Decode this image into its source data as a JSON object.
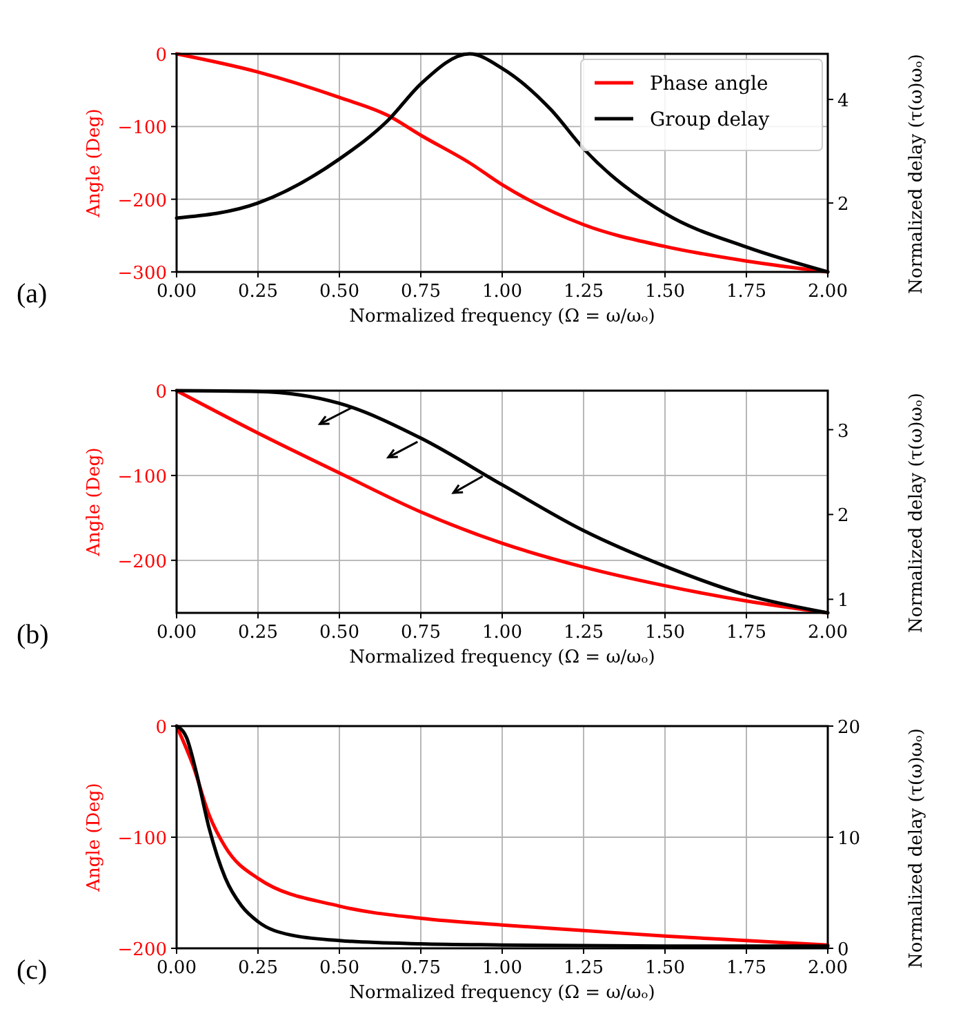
{
  "chart_data": [
    {
      "type": "line",
      "xlabel": "Normalized frequency (Ω = ω/ωₒ)",
      "ylabel": "Angle (Deg)",
      "y2label": "Normalized delay (τ(ω)ωₒ)",
      "annotations": [
        "(a)"
      ],
      "xlim": [
        0,
        2
      ],
      "xticks": [
        {
          "value": 0,
          "label": "0.00"
        },
        {
          "value": 0.25,
          "label": "0.25"
        },
        {
          "value": 0.5,
          "label": "0.50"
        },
        {
          "value": 0.75,
          "label": "0.75"
        },
        {
          "value": 1,
          "label": "1.00"
        },
        {
          "value": 1.25,
          "label": "1.25"
        },
        {
          "value": 1.5,
          "label": "1.50"
        },
        {
          "value": 1.75,
          "label": "1.75"
        },
        {
          "value": 2,
          "label": "2.00"
        }
      ],
      "ylim": [
        -300,
        0
      ],
      "yticks": [
        {
          "value": -300,
          "label": "−300"
        },
        {
          "value": -200,
          "label": "−200"
        },
        {
          "value": -100,
          "label": "−100"
        },
        {
          "value": 0,
          "label": "0"
        }
      ],
      "y2lim": [
        0.67,
        4.88
      ],
      "y2ticks": [
        2,
        4
      ],
      "grid": true,
      "legend": "top right",
      "series": [
        {
          "name": "Phase angle",
          "color": "#ff0000",
          "x": [
            0,
            0.25,
            0.5,
            0.65,
            0.75,
            0.9,
            1,
            1.25,
            1.5,
            1.75,
            2
          ],
          "values": [
            0,
            -25,
            -60,
            -85,
            -112,
            -150,
            -180,
            -235,
            -265,
            -285,
            -300
          ]
        },
        {
          "name": "Group delay",
          "color": "#000000",
          "axis": "y2",
          "x": [
            0,
            0.25,
            0.5,
            0.65,
            0.75,
            0.9,
            1,
            1.15,
            1.25,
            1.5,
            1.75,
            2
          ],
          "values": [
            1.71,
            2.0,
            2.85,
            3.6,
            4.3,
            4.88,
            4.6,
            3.8,
            3.05,
            1.8,
            1.15,
            0.67
          ]
        }
      ]
    },
    {
      "type": "line",
      "xlabel": "Normalized frequency (Ω = ω/ωₒ)",
      "ylabel": "Angle (Deg)",
      "y2label": "Normalized delay (τ(ω)ωₒ)",
      "annotations": [
        "(b)"
      ],
      "xlim": [
        0,
        2
      ],
      "xticks": [
        {
          "value": 0,
          "label": "0.00"
        },
        {
          "value": 0.25,
          "label": "0.25"
        },
        {
          "value": 0.5,
          "label": "0.50"
        },
        {
          "value": 0.75,
          "label": "0.75"
        },
        {
          "value": 1,
          "label": "1.00"
        },
        {
          "value": 1.25,
          "label": "1.25"
        },
        {
          "value": 1.5,
          "label": "1.50"
        },
        {
          "value": 1.75,
          "label": "1.75"
        },
        {
          "value": 2,
          "label": "2.00"
        }
      ],
      "ylim": [
        -262,
        0
      ],
      "yticks": [
        {
          "value": -200,
          "label": "−200"
        },
        {
          "value": -100,
          "label": "−100"
        },
        {
          "value": 0,
          "label": "0"
        }
      ],
      "y2lim": [
        0.84,
        3.46
      ],
      "y2ticks": [
        1,
        2,
        3
      ],
      "grid": true,
      "series": [
        {
          "color": "#ff0000",
          "x": [
            0,
            0.25,
            0.5,
            0.75,
            1,
            1.25,
            1.5,
            1.75,
            2
          ],
          "values": [
            0,
            -50,
            -97,
            -143,
            -180,
            -208,
            -230,
            -248,
            -262
          ]
        },
        {
          "color": "#000000",
          "axis": "y2",
          "x": [
            0,
            0.25,
            0.5,
            0.75,
            1,
            1.25,
            1.5,
            1.75,
            2
          ],
          "values": [
            3.46,
            3.45,
            3.31,
            2.9,
            2.35,
            1.81,
            1.39,
            1.05,
            0.84
          ]
        }
      ]
    },
    {
      "type": "line",
      "xlabel": "Normalized frequency (Ω = ω/ωₒ)",
      "ylabel": "Angle (Deg)",
      "y2label": "Normalized delay (τ(ω)ωₒ)",
      "annotations": [
        "(c)"
      ],
      "xlim": [
        0,
        2
      ],
      "xticks": [
        {
          "value": 0,
          "label": "0.00"
        },
        {
          "value": 0.25,
          "label": "0.25"
        },
        {
          "value": 0.5,
          "label": "0.50"
        },
        {
          "value": 0.75,
          "label": "0.75"
        },
        {
          "value": 1,
          "label": "1.00"
        },
        {
          "value": 1.25,
          "label": "1.25"
        },
        {
          "value": 1.5,
          "label": "1.50"
        },
        {
          "value": 1.75,
          "label": "1.75"
        },
        {
          "value": 2,
          "label": "2.00"
        }
      ],
      "ylim": [
        -200,
        0
      ],
      "yticks": [
        {
          "value": -200,
          "label": "−200"
        },
        {
          "value": -100,
          "label": "−100"
        },
        {
          "value": 0,
          "label": "0"
        }
      ],
      "y2lim": [
        0,
        20
      ],
      "y2ticks": [
        0,
        10,
        20
      ],
      "grid": true,
      "series": [
        {
          "color": "#ff0000",
          "x": [
            0,
            0.05,
            0.1,
            0.15,
            0.25,
            0.5,
            0.75,
            1,
            1.25,
            1.5,
            1.75,
            2
          ],
          "values": [
            0,
            -35,
            -80,
            -109,
            -137,
            -162,
            -173,
            -179,
            -184,
            -189,
            -193,
            -197
          ]
        },
        {
          "color": "#000000",
          "axis": "y2",
          "x": [
            0,
            0.03,
            0.06,
            0.1,
            0.15,
            0.2,
            0.25,
            0.35,
            0.5,
            0.75,
            1,
            1.5,
            2
          ],
          "values": [
            20,
            19,
            15.9,
            10.8,
            6.3,
            3.8,
            2.4,
            1.2,
            0.7,
            0.4,
            0.3,
            0.2,
            0.2
          ]
        }
      ]
    }
  ]
}
